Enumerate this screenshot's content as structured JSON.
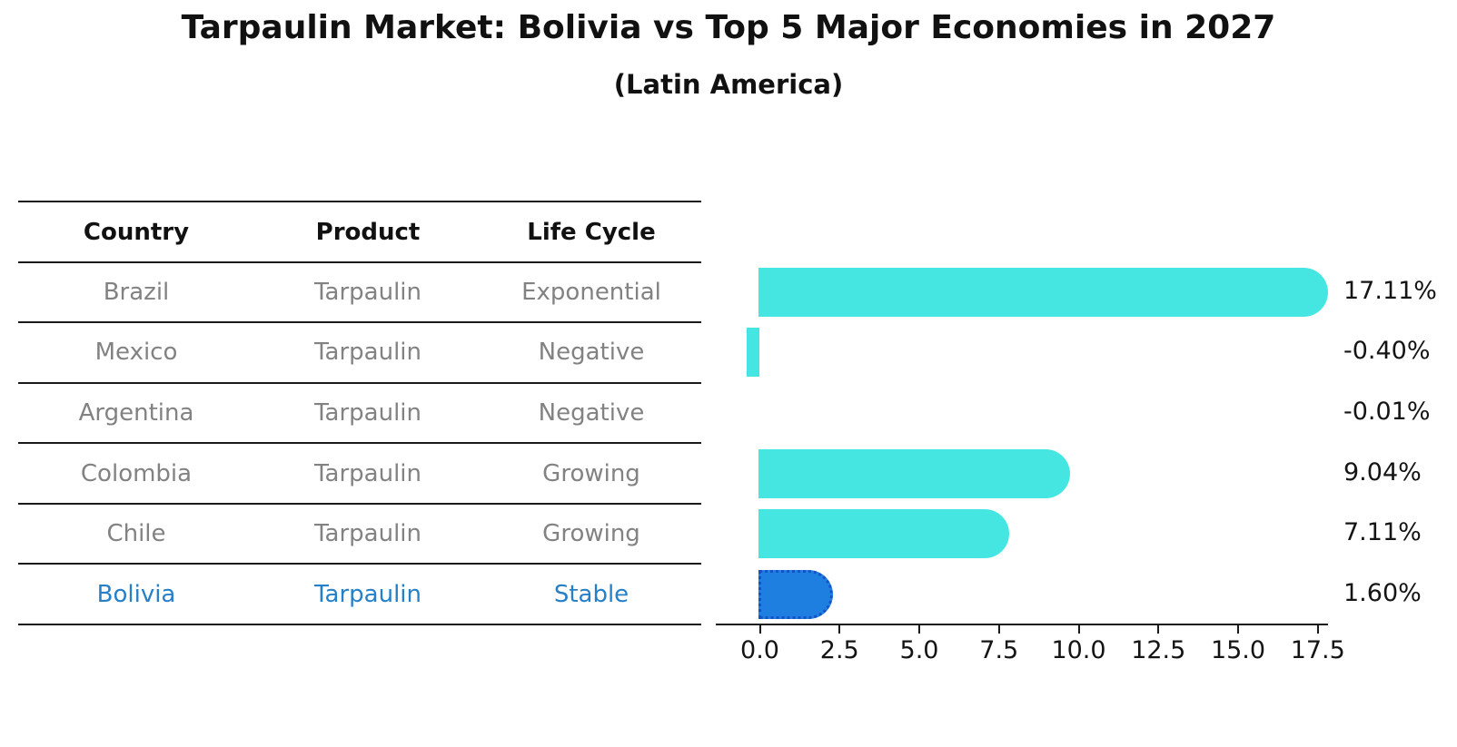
{
  "title": "Tarpaulin Market: Bolivia vs Top 5 Major Economies in 2027",
  "subtitle": "(Latin America)",
  "table": {
    "headers": [
      "Country",
      "Product",
      "Life Cycle"
    ],
    "rows": [
      {
        "country": "Brazil",
        "product": "Tarpaulin",
        "life_cycle": "Exponential",
        "highlight": false
      },
      {
        "country": "Mexico",
        "product": "Tarpaulin",
        "life_cycle": "Negative",
        "highlight": false
      },
      {
        "country": "Argentina",
        "product": "Tarpaulin",
        "life_cycle": "Negative",
        "highlight": false
      },
      {
        "country": "Colombia",
        "product": "Tarpaulin",
        "life_cycle": "Growing",
        "highlight": false
      },
      {
        "country": "Chile",
        "product": "Tarpaulin",
        "life_cycle": "Growing",
        "highlight": false
      },
      {
        "country": "Bolivia",
        "product": "Tarpaulin",
        "life_cycle": "Stable",
        "highlight": true
      }
    ]
  },
  "chart_data": {
    "type": "bar",
    "orientation": "horizontal",
    "categories": [
      "Brazil",
      "Mexico",
      "Argentina",
      "Colombia",
      "Chile",
      "Bolivia"
    ],
    "values": [
      17.11,
      -0.4,
      -0.01,
      9.04,
      7.11,
      1.6
    ],
    "value_labels": [
      "17.11%",
      "-0.40%",
      "-0.01%",
      "9.04%",
      "7.11%",
      "1.60%"
    ],
    "x_ticks": [
      0.0,
      2.5,
      5.0,
      7.5,
      10.0,
      12.5,
      15.0,
      17.5
    ],
    "x_tick_labels": [
      "0.0",
      "2.5",
      "5.0",
      "7.5",
      "10.0",
      "12.5",
      "15.0",
      "17.5"
    ],
    "xlim": [
      -1.4,
      17.8
    ],
    "grid": false,
    "legend": false,
    "bar_style": "rounded-right-cap",
    "highlight_index": 5,
    "highlight_style": "dotted-edge",
    "colors": {
      "bar_default": "#45e6e1",
      "bar_highlight": "#1e7fe1",
      "bar_highlight_edge": "#1452c8",
      "highlight_text": "#2580c8",
      "table_text": "#828282",
      "header_text": "#111111"
    }
  }
}
